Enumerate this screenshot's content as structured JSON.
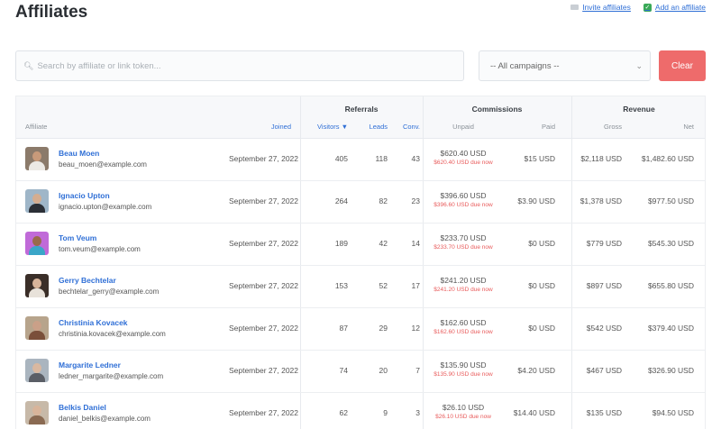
{
  "page": {
    "title": "Affiliates"
  },
  "top_links": {
    "invite": "Invite affiliates",
    "add": "Add an affiliate"
  },
  "filters": {
    "search_placeholder": "Search by affiliate or link token...",
    "campaign_selected": "-- All campaigns --",
    "clear_label": "Clear"
  },
  "colors": {
    "link": "#2f6fd6",
    "clear": "#ee6b6b",
    "due": "#e85a5a"
  },
  "table": {
    "groups": {
      "referrals": "Referrals",
      "commissions": "Commissions",
      "revenue": "Revenue"
    },
    "columns": {
      "affiliate": "Affiliate",
      "joined": "Joined",
      "visitors": "Visitors ▼",
      "leads": "Leads",
      "conv": "Conv.",
      "unpaid": "Unpaid",
      "paid": "Paid",
      "gross": "Gross",
      "net": "Net"
    },
    "due_suffix": "due now",
    "rows": [
      {
        "name": "Beau Moen",
        "email": "beau_moen@example.com",
        "joined": "September 27, 2022",
        "visitors": "405",
        "leads": "118",
        "conv": "43",
        "unpaid": "$620.40 USD",
        "due": "$620.40 USD",
        "paid": "$15 USD",
        "gross": "$2,118 USD",
        "net": "$1,482.60 USD",
        "avatar": {
          "bg": "#8b7a6a",
          "skin": "#c89a7a",
          "shirt": "#ece9e4"
        }
      },
      {
        "name": "Ignacio Upton",
        "email": "ignacio.upton@example.com",
        "joined": "September 27, 2022",
        "visitors": "264",
        "leads": "82",
        "conv": "23",
        "unpaid": "$396.60 USD",
        "due": "$396.60 USD",
        "paid": "$3.90 USD",
        "gross": "$1,378 USD",
        "net": "$977.50 USD",
        "avatar": {
          "bg": "#9fb6c8",
          "skin": "#d4ad90",
          "shirt": "#2b2f36"
        }
      },
      {
        "name": "Tom Veum",
        "email": "tom.veum@example.com",
        "joined": "September 27, 2022",
        "visitors": "189",
        "leads": "42",
        "conv": "14",
        "unpaid": "$233.70 USD",
        "due": "$233.70 USD",
        "paid": "$0 USD",
        "gross": "$779 USD",
        "net": "$545.30 USD",
        "avatar": {
          "bg": "#c06ad8",
          "skin": "#9a6a4a",
          "shirt": "#3aa6c8"
        }
      },
      {
        "name": "Gerry Bechtelar",
        "email": "bechtelar_gerry@example.com",
        "joined": "September 27, 2022",
        "visitors": "153",
        "leads": "52",
        "conv": "17",
        "unpaid": "$241.20 USD",
        "due": "$241.20 USD",
        "paid": "$0 USD",
        "gross": "$897 USD",
        "net": "$655.80 USD",
        "avatar": {
          "bg": "#3a2e28",
          "skin": "#d8b49a",
          "shirt": "#e8e2da"
        }
      },
      {
        "name": "Christinia Kovacek",
        "email": "christinia.kovacek@example.com",
        "joined": "September 27, 2022",
        "visitors": "87",
        "leads": "29",
        "conv": "12",
        "unpaid": "$162.60 USD",
        "due": "$162.60 USD",
        "paid": "$0 USD",
        "gross": "$542 USD",
        "net": "$379.40 USD",
        "avatar": {
          "bg": "#b7a48c",
          "skin": "#caa088",
          "shirt": "#7a4f3a"
        }
      },
      {
        "name": "Margarite Ledner",
        "email": "ledner_margarite@example.com",
        "joined": "September 27, 2022",
        "visitors": "74",
        "leads": "20",
        "conv": "7",
        "unpaid": "$135.90 USD",
        "due": "$135.90 USD",
        "paid": "$4.20 USD",
        "gross": "$467 USD",
        "net": "$326.90 USD",
        "avatar": {
          "bg": "#aab5bf",
          "skin": "#d9b8a0",
          "shirt": "#5a5e66"
        }
      },
      {
        "name": "Belkis Daniel",
        "email": "daniel_belkis@example.com",
        "joined": "September 27, 2022",
        "visitors": "62",
        "leads": "9",
        "conv": "3",
        "unpaid": "$26.10 USD",
        "due": "$26.10 USD",
        "paid": "$14.40 USD",
        "gross": "$135 USD",
        "net": "$94.50 USD",
        "avatar": {
          "bg": "#c7b9a8",
          "skin": "#d8b49a",
          "shirt": "#8a6a52"
        }
      }
    ]
  }
}
